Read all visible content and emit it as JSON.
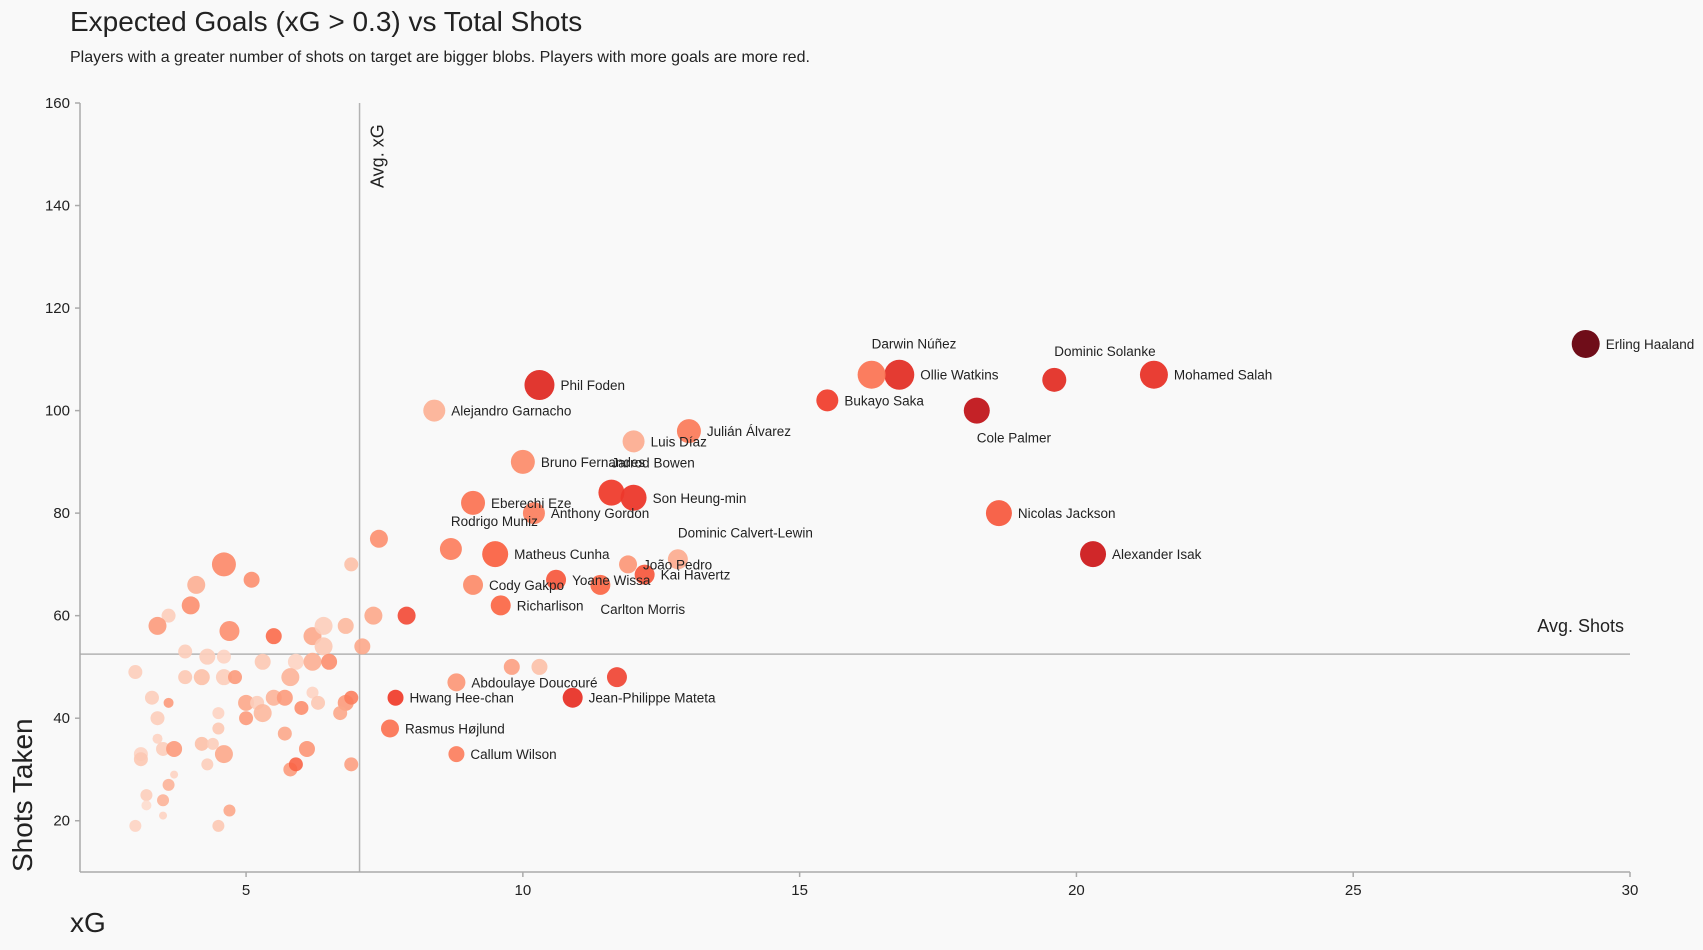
{
  "chart_data": {
    "type": "scatter",
    "title": "Expected Goals (xG > 0.3) vs Total Shots",
    "subtitle": "Players with a greater number of shots on target are bigger blobs. Players with more goals are more red.",
    "xlabel": "xG",
    "ylabel": "Shots Taken",
    "xlim": [
      2,
      30
    ],
    "ylim": [
      10,
      160
    ],
    "xticks": [
      5,
      10,
      15,
      20,
      25,
      30
    ],
    "yticks": [
      20,
      40,
      60,
      80,
      100,
      120,
      140,
      160
    ],
    "grid": false,
    "reference_lines": {
      "avg_xg": {
        "value": 7.05,
        "label": "Avg. xG"
      },
      "avg_shots": {
        "value": 52.5,
        "label": "Avg. Shots"
      }
    },
    "size_encoding": "shots on target",
    "color_encoding": "goals",
    "color_scale": [
      "#fde9e0",
      "#fcbba1",
      "#fc9272",
      "#fb6a4a",
      "#ef3b2c",
      "#cb181d",
      "#67000d"
    ],
    "labeled_points": [
      {
        "name": "Erling Haaland",
        "x": 29.2,
        "y": 113,
        "size": 14,
        "color": 1.0
      },
      {
        "name": "Mohamed Salah",
        "x": 21.4,
        "y": 107,
        "size": 14,
        "color": 0.7
      },
      {
        "name": "Dominic Solanke",
        "x": 19.6,
        "y": 106,
        "size": 12,
        "color": 0.72
      },
      {
        "name": "Darwin Núñez",
        "x": 16.3,
        "y": 107,
        "size": 14,
        "color": 0.45
      },
      {
        "name": "Ollie Watkins",
        "x": 16.8,
        "y": 107,
        "size": 15,
        "color": 0.72
      },
      {
        "name": "Cole Palmer",
        "x": 18.2,
        "y": 100,
        "size": 13,
        "color": 0.85
      },
      {
        "name": "Bukayo Saka",
        "x": 15.5,
        "y": 102,
        "size": 11,
        "color": 0.65
      },
      {
        "name": "Phil Foden",
        "x": 10.3,
        "y": 105,
        "size": 15,
        "color": 0.74
      },
      {
        "name": "Alejandro Garnacho",
        "x": 8.4,
        "y": 100,
        "size": 11,
        "color": 0.2
      },
      {
        "name": "Julián Álvarez",
        "x": 13.0,
        "y": 96,
        "size": 12,
        "color": 0.42
      },
      {
        "name": "Luis Díaz",
        "x": 12.0,
        "y": 94,
        "size": 11,
        "color": 0.22
      },
      {
        "name": "Bruno Fernandes",
        "x": 10.0,
        "y": 90,
        "size": 12,
        "color": 0.35
      },
      {
        "name": "Jarrod Bowen",
        "x": 11.6,
        "y": 84,
        "size": 13,
        "color": 0.66
      },
      {
        "name": "Son Heung-min",
        "x": 12.0,
        "y": 83,
        "size": 13,
        "color": 0.68
      },
      {
        "name": "Eberechi Eze",
        "x": 9.1,
        "y": 82,
        "size": 12,
        "color": 0.45
      },
      {
        "name": "Anthony Gordon",
        "x": 10.2,
        "y": 80,
        "size": 11,
        "color": 0.4
      },
      {
        "name": "Nicolas Jackson",
        "x": 18.6,
        "y": 80,
        "size": 13,
        "color": 0.55
      },
      {
        "name": "Alexander Isak",
        "x": 20.3,
        "y": 72,
        "size": 13,
        "color": 0.82
      },
      {
        "name": "Rodrigo Muniz",
        "x": 8.7,
        "y": 73,
        "size": 11,
        "color": 0.4
      },
      {
        "name": "Matheus Cunha",
        "x": 9.5,
        "y": 72,
        "size": 13,
        "color": 0.52
      },
      {
        "name": "Dominic Calvert-Lewin",
        "x": 12.8,
        "y": 71,
        "size": 10,
        "color": 0.22
      },
      {
        "name": "João Pedro",
        "x": 11.9,
        "y": 70,
        "size": 9,
        "color": 0.3
      },
      {
        "name": "Kai Havertz",
        "x": 12.2,
        "y": 68,
        "size": 10,
        "color": 0.55
      },
      {
        "name": "Yoane Wissa",
        "x": 10.6,
        "y": 67,
        "size": 10,
        "color": 0.55
      },
      {
        "name": "Cody Gakpo",
        "x": 9.1,
        "y": 66,
        "size": 10,
        "color": 0.35
      },
      {
        "name": "Carlton Morris",
        "x": 11.4,
        "y": 66,
        "size": 10,
        "color": 0.5
      },
      {
        "name": "Richarlison",
        "x": 9.6,
        "y": 62,
        "size": 10,
        "color": 0.5
      },
      {
        "name": "Abdoulaye Doucouré",
        "x": 8.8,
        "y": 47,
        "size": 9,
        "color": 0.3
      },
      {
        "name": "Jean-Philippe Mateta",
        "x": 10.9,
        "y": 44,
        "size": 10,
        "color": 0.7
      },
      {
        "name": "Hwang Hee-chan",
        "x": 7.7,
        "y": 44,
        "size": 8,
        "color": 0.65
      },
      {
        "name": "Rasmus Højlund",
        "x": 7.6,
        "y": 38,
        "size": 9,
        "color": 0.45
      },
      {
        "name": "Callum Wilson",
        "x": 8.8,
        "y": 33,
        "size": 8,
        "color": 0.4
      }
    ],
    "unlabeled_points": [
      {
        "x": 11.7,
        "y": 48,
        "size": 10,
        "color": 0.65
      },
      {
        "x": 9.8,
        "y": 50,
        "size": 8,
        "color": 0.28
      },
      {
        "x": 10.3,
        "y": 50,
        "size": 8,
        "color": 0.15
      },
      {
        "x": 7.4,
        "y": 75,
        "size": 9,
        "color": 0.35
      },
      {
        "x": 7.3,
        "y": 60,
        "size": 9,
        "color": 0.25
      },
      {
        "x": 7.9,
        "y": 60,
        "size": 9,
        "color": 0.62
      },
      {
        "x": 6.9,
        "y": 70,
        "size": 7,
        "color": 0.15
      },
      {
        "x": 4.6,
        "y": 70,
        "size": 12,
        "color": 0.38
      },
      {
        "x": 5.1,
        "y": 67,
        "size": 8,
        "color": 0.35
      },
      {
        "x": 4.1,
        "y": 66,
        "size": 9,
        "color": 0.22
      },
      {
        "x": 4.0,
        "y": 62,
        "size": 9,
        "color": 0.35
      },
      {
        "x": 3.6,
        "y": 60,
        "size": 7,
        "color": 0.1
      },
      {
        "x": 3.4,
        "y": 58,
        "size": 9,
        "color": 0.3
      },
      {
        "x": 4.7,
        "y": 57,
        "size": 10,
        "color": 0.35
      },
      {
        "x": 5.5,
        "y": 56,
        "size": 8,
        "color": 0.5
      },
      {
        "x": 6.2,
        "y": 56,
        "size": 9,
        "color": 0.25
      },
      {
        "x": 6.8,
        "y": 58,
        "size": 8,
        "color": 0.18
      },
      {
        "x": 6.4,
        "y": 58,
        "size": 9,
        "color": 0.1
      },
      {
        "x": 7.1,
        "y": 54,
        "size": 8,
        "color": 0.25
      },
      {
        "x": 6.4,
        "y": 54,
        "size": 9,
        "color": 0.12
      },
      {
        "x": 3.9,
        "y": 53,
        "size": 7,
        "color": 0.1
      },
      {
        "x": 4.3,
        "y": 52,
        "size": 8,
        "color": 0.1
      },
      {
        "x": 4.6,
        "y": 52,
        "size": 7,
        "color": 0.08
      },
      {
        "x": 5.3,
        "y": 51,
        "size": 8,
        "color": 0.12
      },
      {
        "x": 5.9,
        "y": 51,
        "size": 8,
        "color": 0.08
      },
      {
        "x": 6.2,
        "y": 51,
        "size": 9,
        "color": 0.22
      },
      {
        "x": 6.5,
        "y": 51,
        "size": 8,
        "color": 0.35
      },
      {
        "x": 3.0,
        "y": 49,
        "size": 7,
        "color": 0.1
      },
      {
        "x": 3.9,
        "y": 48,
        "size": 7,
        "color": 0.12
      },
      {
        "x": 4.2,
        "y": 48,
        "size": 8,
        "color": 0.15
      },
      {
        "x": 4.6,
        "y": 48,
        "size": 8,
        "color": 0.1
      },
      {
        "x": 4.8,
        "y": 48,
        "size": 7,
        "color": 0.3
      },
      {
        "x": 5.8,
        "y": 48,
        "size": 9,
        "color": 0.2
      },
      {
        "x": 3.3,
        "y": 44,
        "size": 7,
        "color": 0.1
      },
      {
        "x": 3.6,
        "y": 43,
        "size": 5,
        "color": 0.3
      },
      {
        "x": 5.0,
        "y": 43,
        "size": 8,
        "color": 0.25
      },
      {
        "x": 5.2,
        "y": 43,
        "size": 7,
        "color": 0.1
      },
      {
        "x": 5.5,
        "y": 44,
        "size": 8,
        "color": 0.2
      },
      {
        "x": 5.7,
        "y": 44,
        "size": 8,
        "color": 0.3
      },
      {
        "x": 6.0,
        "y": 42,
        "size": 7,
        "color": 0.35
      },
      {
        "x": 6.2,
        "y": 45,
        "size": 6,
        "color": 0.08
      },
      {
        "x": 6.3,
        "y": 43,
        "size": 7,
        "color": 0.12
      },
      {
        "x": 6.8,
        "y": 43,
        "size": 8,
        "color": 0.3
      },
      {
        "x": 6.9,
        "y": 44,
        "size": 7,
        "color": 0.42
      },
      {
        "x": 5.3,
        "y": 41,
        "size": 9,
        "color": 0.18
      },
      {
        "x": 5.0,
        "y": 40,
        "size": 7,
        "color": 0.3
      },
      {
        "x": 3.4,
        "y": 40,
        "size": 7,
        "color": 0.1
      },
      {
        "x": 4.5,
        "y": 41,
        "size": 6,
        "color": 0.08
      },
      {
        "x": 6.7,
        "y": 41,
        "size": 7,
        "color": 0.25
      },
      {
        "x": 4.5,
        "y": 38,
        "size": 6,
        "color": 0.12
      },
      {
        "x": 5.7,
        "y": 37,
        "size": 7,
        "color": 0.25
      },
      {
        "x": 3.4,
        "y": 36,
        "size": 5,
        "color": 0.08
      },
      {
        "x": 4.2,
        "y": 35,
        "size": 7,
        "color": 0.15
      },
      {
        "x": 4.4,
        "y": 35,
        "size": 6,
        "color": 0.1
      },
      {
        "x": 3.5,
        "y": 34,
        "size": 7,
        "color": 0.1
      },
      {
        "x": 3.7,
        "y": 34,
        "size": 8,
        "color": 0.3
      },
      {
        "x": 4.6,
        "y": 33,
        "size": 9,
        "color": 0.25
      },
      {
        "x": 6.1,
        "y": 34,
        "size": 8,
        "color": 0.32
      },
      {
        "x": 3.1,
        "y": 33,
        "size": 7,
        "color": 0.08
      },
      {
        "x": 3.1,
        "y": 32,
        "size": 7,
        "color": 0.12
      },
      {
        "x": 4.3,
        "y": 31,
        "size": 6,
        "color": 0.1
      },
      {
        "x": 5.8,
        "y": 30,
        "size": 7,
        "color": 0.3
      },
      {
        "x": 5.9,
        "y": 31,
        "size": 7,
        "color": 0.52
      },
      {
        "x": 6.9,
        "y": 31,
        "size": 7,
        "color": 0.28
      },
      {
        "x": 3.7,
        "y": 29,
        "size": 4,
        "color": 0.08
      },
      {
        "x": 3.6,
        "y": 27,
        "size": 6,
        "color": 0.2
      },
      {
        "x": 3.2,
        "y": 25,
        "size": 6,
        "color": 0.1
      },
      {
        "x": 3.5,
        "y": 24,
        "size": 6,
        "color": 0.2
      },
      {
        "x": 3.2,
        "y": 23,
        "size": 5,
        "color": 0.05
      },
      {
        "x": 4.7,
        "y": 22,
        "size": 6,
        "color": 0.25
      },
      {
        "x": 3.5,
        "y": 21,
        "size": 4,
        "color": 0.08
      },
      {
        "x": 3.0,
        "y": 19,
        "size": 6,
        "color": 0.08
      },
      {
        "x": 4.5,
        "y": 19,
        "size": 6,
        "color": 0.12
      }
    ]
  }
}
